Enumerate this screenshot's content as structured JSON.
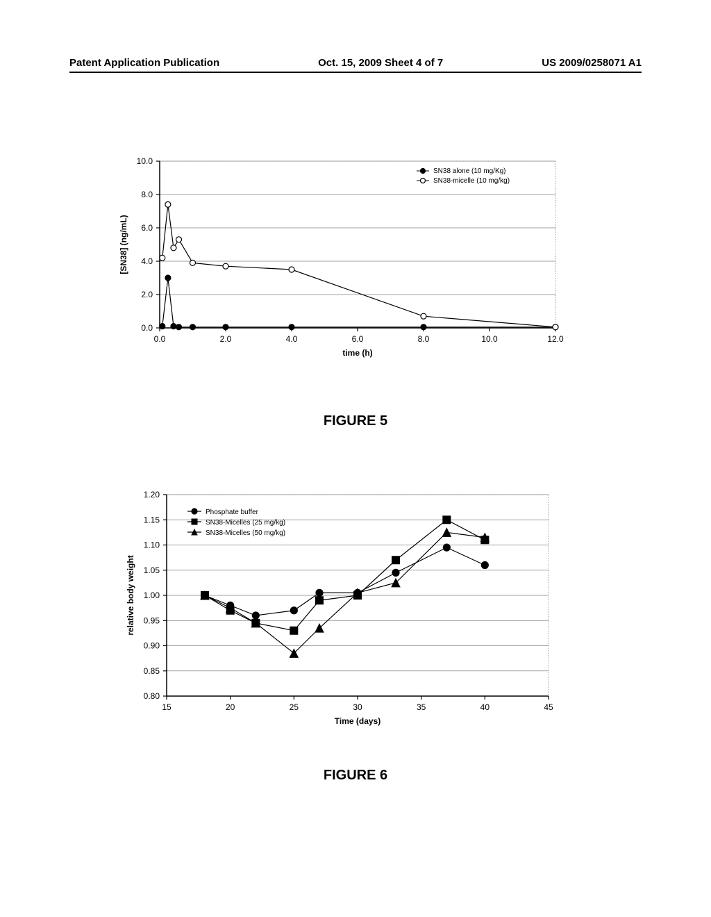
{
  "header": {
    "left": "Patent Application Publication",
    "mid": "Oct. 15, 2009  Sheet 4 of 7",
    "right": "US 2009/0258071 A1"
  },
  "figure5": {
    "label": "FIGURE 5",
    "type": "line",
    "xlabel": "time (h)",
    "ylabel": "[SN38] (ng/mL)",
    "xlim": [
      0.0,
      12.0
    ],
    "ylim": [
      0.0,
      10.0
    ],
    "xtick_step": 2.0,
    "ytick_step": 2.0,
    "xticks": [
      "0.0",
      "2.0",
      "4.0",
      "6.0",
      "8.0",
      "10.0",
      "12.0"
    ],
    "yticks": [
      "0.0",
      "2.0",
      "4.0",
      "6.0",
      "8.0",
      "10.0"
    ],
    "label_fontsize": 12,
    "tick_fontsize": 12,
    "grid_color": "#808080",
    "axis_color": "#000000",
    "background_color": "#ffffff",
    "legend": {
      "position": "top-right",
      "items": [
        {
          "label": "SN38 alone (10 mg/Kg)",
          "marker": "filled-circle"
        },
        {
          "label": "SN38-micelle (10 mg/kg)",
          "marker": "open-circle"
        }
      ],
      "fontsize": 10
    },
    "series": [
      {
        "name": "SN38 alone",
        "marker": "filled-circle",
        "color": "#000000",
        "fill": "#000000",
        "line_width": 1.2,
        "marker_size": 4,
        "points": [
          [
            0.08,
            0.1
          ],
          [
            0.25,
            3.0
          ],
          [
            0.42,
            0.1
          ],
          [
            0.58,
            0.05
          ],
          [
            1.0,
            0.05
          ],
          [
            2.0,
            0.05
          ],
          [
            4.0,
            0.05
          ],
          [
            8.0,
            0.05
          ],
          [
            12.0,
            0.05
          ]
        ]
      },
      {
        "name": "SN38-micelle",
        "marker": "open-circle",
        "color": "#000000",
        "fill": "#ffffff",
        "line_width": 1.2,
        "marker_size": 4,
        "points": [
          [
            0.08,
            4.2
          ],
          [
            0.25,
            7.4
          ],
          [
            0.42,
            4.8
          ],
          [
            0.58,
            5.3
          ],
          [
            1.0,
            3.9
          ],
          [
            2.0,
            3.7
          ],
          [
            4.0,
            3.5
          ],
          [
            8.0,
            0.7
          ],
          [
            12.0,
            0.05
          ]
        ]
      }
    ]
  },
  "figure6": {
    "label": "FIGURE 6",
    "type": "line",
    "xlabel": "Time (days)",
    "ylabel": "relative body weight",
    "xlim": [
      15,
      45
    ],
    "ylim": [
      0.8,
      1.2
    ],
    "xtick_step": 5,
    "ytick_step": 0.05,
    "xticks": [
      "15",
      "20",
      "25",
      "30",
      "35",
      "40",
      "45"
    ],
    "yticks": [
      "0.80",
      "0.85",
      "0.90",
      "0.95",
      "1.00",
      "1.05",
      "1.10",
      "1.15",
      "1.20"
    ],
    "label_fontsize": 12,
    "tick_fontsize": 12,
    "grid_color": "#808080",
    "axis_color": "#000000",
    "background_color": "#ffffff",
    "legend": {
      "position": "top-left-inside",
      "items": [
        {
          "label": "Phosphate buffer",
          "marker": "filled-circle"
        },
        {
          "label": "SN38-Micelles (25 mg/kg)",
          "marker": "filled-square"
        },
        {
          "label": "SN38-Micelles (50 mg/kg)",
          "marker": "filled-triangle"
        }
      ],
      "fontsize": 10
    },
    "series": [
      {
        "name": "Phosphate buffer",
        "marker": "filled-circle",
        "color": "#000000",
        "fill": "#000000",
        "line_width": 1.2,
        "marker_size": 5,
        "points": [
          [
            18,
            1.0
          ],
          [
            20,
            0.98
          ],
          [
            22,
            0.96
          ],
          [
            25,
            0.97
          ],
          [
            27,
            1.005
          ],
          [
            30,
            1.005
          ],
          [
            33,
            1.045
          ],
          [
            37,
            1.095
          ],
          [
            40,
            1.06
          ]
        ]
      },
      {
        "name": "SN38-Micelles 25",
        "marker": "filled-square",
        "color": "#000000",
        "fill": "#000000",
        "line_width": 1.2,
        "marker_size": 5.5,
        "points": [
          [
            18,
            1.0
          ],
          [
            20,
            0.97
          ],
          [
            22,
            0.945
          ],
          [
            25,
            0.93
          ],
          [
            27,
            0.99
          ],
          [
            30,
            1.0
          ],
          [
            33,
            1.07
          ],
          [
            37,
            1.15
          ],
          [
            40,
            1.11
          ]
        ]
      },
      {
        "name": "SN38-Micelles 50",
        "marker": "filled-triangle",
        "color": "#000000",
        "fill": "#000000",
        "line_width": 1.2,
        "marker_size": 6,
        "points": [
          [
            18,
            1.0
          ],
          [
            20,
            0.975
          ],
          [
            22,
            0.945
          ],
          [
            25,
            0.885
          ],
          [
            27,
            0.935
          ],
          [
            30,
            1.005
          ],
          [
            33,
            1.025
          ],
          [
            37,
            1.125
          ],
          [
            40,
            1.115
          ]
        ]
      }
    ]
  }
}
